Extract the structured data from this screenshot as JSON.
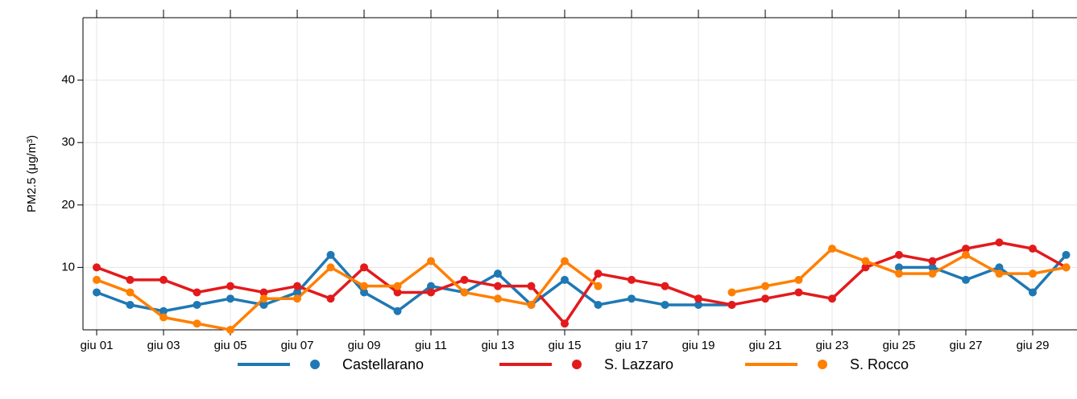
{
  "chart_data": {
    "type": "line",
    "y_label": "PM2.5 (μg/m³)",
    "categories": [
      "giu 01",
      null,
      "giu 03",
      null,
      "giu 05",
      null,
      "giu 07",
      null,
      "giu 09",
      null,
      "giu 11",
      null,
      "giu 13",
      null,
      "giu 15",
      null,
      "giu 17",
      null,
      "giu 19",
      null,
      "giu 21",
      null,
      "giu 23",
      null,
      "giu 25",
      null,
      "giu 27",
      null,
      "giu 29",
      null
    ],
    "series": [
      {
        "name": "Castellarano",
        "color": "#1f78b4",
        "values": [
          6,
          4,
          3,
          4,
          5,
          4,
          6,
          12,
          6,
          3,
          7,
          6,
          9,
          4,
          8,
          4,
          5,
          4,
          4,
          4,
          null,
          null,
          null,
          null,
          10,
          10,
          8,
          10,
          6,
          12
        ]
      },
      {
        "name": "S. Lazzaro",
        "color": "#e31a1c",
        "values": [
          10,
          8,
          8,
          6,
          7,
          6,
          7,
          5,
          10,
          6,
          6,
          8,
          7,
          7,
          1,
          9,
          8,
          7,
          5,
          4,
          5,
          6,
          5,
          10,
          12,
          11,
          13,
          14,
          13,
          10
        ]
      },
      {
        "name": "S. Rocco",
        "color": "#ff7f00",
        "values": [
          8,
          6,
          2,
          1,
          0,
          5,
          5,
          10,
          7,
          7,
          11,
          6,
          5,
          4,
          11,
          7,
          null,
          null,
          null,
          6,
          7,
          8,
          13,
          11,
          9,
          9,
          12,
          9,
          9,
          10
        ]
      }
    ],
    "ylim": [
      0,
      50
    ],
    "yticks": [
      10,
      20,
      30,
      40
    ],
    "grid": true
  }
}
